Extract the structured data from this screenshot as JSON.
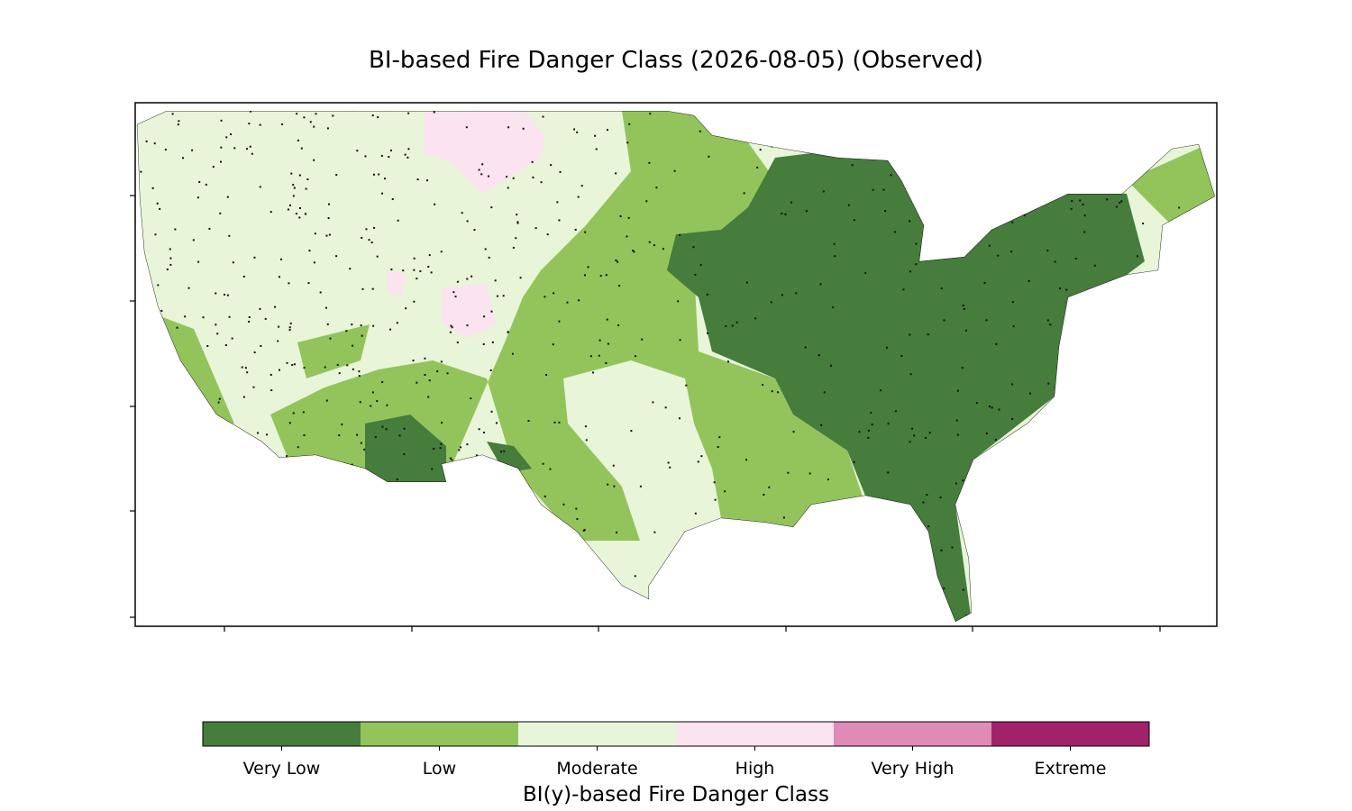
{
  "title": "BI-based Fire Danger Class (2026-08-05) (Observed)",
  "legend": {
    "title": "BI(y)-based Fire Danger Class",
    "classes": [
      {
        "label": "Very Low",
        "color": "#467c3c"
      },
      {
        "label": "Low",
        "color": "#93c45c"
      },
      {
        "label": "Moderate",
        "color": "#e8f5d8"
      },
      {
        "label": "High",
        "color": "#fbe3ef"
      },
      {
        "label": "Very High",
        "color": "#e08ab8"
      },
      {
        "label": "Extreme",
        "color": "#a2226a"
      }
    ]
  }
}
